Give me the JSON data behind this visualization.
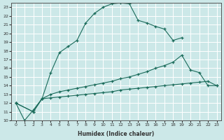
{
  "xlabel": "Humidex (Indice chaleur)",
  "bg_color": "#cce8e8",
  "grid_color": "#ffffff",
  "line_color": "#1a6b5a",
  "xlim": [
    -0.5,
    23.5
  ],
  "ylim": [
    10,
    23.5
  ],
  "yticks": [
    10,
    11,
    12,
    13,
    14,
    15,
    16,
    17,
    18,
    19,
    20,
    21,
    22,
    23
  ],
  "xticks": [
    0,
    1,
    2,
    3,
    4,
    5,
    6,
    7,
    8,
    9,
    10,
    11,
    12,
    13,
    14,
    15,
    16,
    17,
    18,
    19,
    20,
    21,
    22,
    23
  ],
  "line1_x": [
    0,
    1,
    2,
    3,
    4,
    5,
    6,
    7,
    8,
    9,
    10,
    11,
    12,
    13,
    14,
    15,
    16,
    17,
    18,
    19
  ],
  "line1_y": [
    12,
    10,
    11.2,
    12.5,
    15.5,
    17.8,
    18.5,
    19.2,
    21.2,
    22.3,
    23.0,
    23.4,
    23.5,
    23.4,
    21.5,
    21.2,
    20.8,
    20.5,
    19.2,
    19.5
  ],
  "line2_x": [
    0,
    2,
    3,
    4,
    5,
    6,
    7,
    8,
    9,
    10,
    11,
    12,
    13,
    14,
    15,
    16,
    17,
    18,
    19,
    20,
    21,
    22,
    23
  ],
  "line2_y": [
    12,
    11,
    12.5,
    13.0,
    13.3,
    13.5,
    13.7,
    13.9,
    14.1,
    14.3,
    14.5,
    14.8,
    15.0,
    15.3,
    15.6,
    16.0,
    16.3,
    16.7,
    17.5,
    15.8,
    15.5,
    14.0,
    14.0
  ],
  "line3_x": [
    0,
    2,
    3,
    4,
    5,
    6,
    7,
    8,
    9,
    10,
    11,
    12,
    13,
    14,
    15,
    16,
    17,
    18,
    19,
    20,
    21,
    22,
    23
  ],
  "line3_y": [
    12,
    11,
    12.5,
    12.6,
    12.7,
    12.8,
    12.9,
    13.0,
    13.1,
    13.2,
    13.3,
    13.5,
    13.6,
    13.7,
    13.8,
    13.9,
    14.0,
    14.1,
    14.2,
    14.3,
    14.4,
    14.5,
    14.0
  ]
}
